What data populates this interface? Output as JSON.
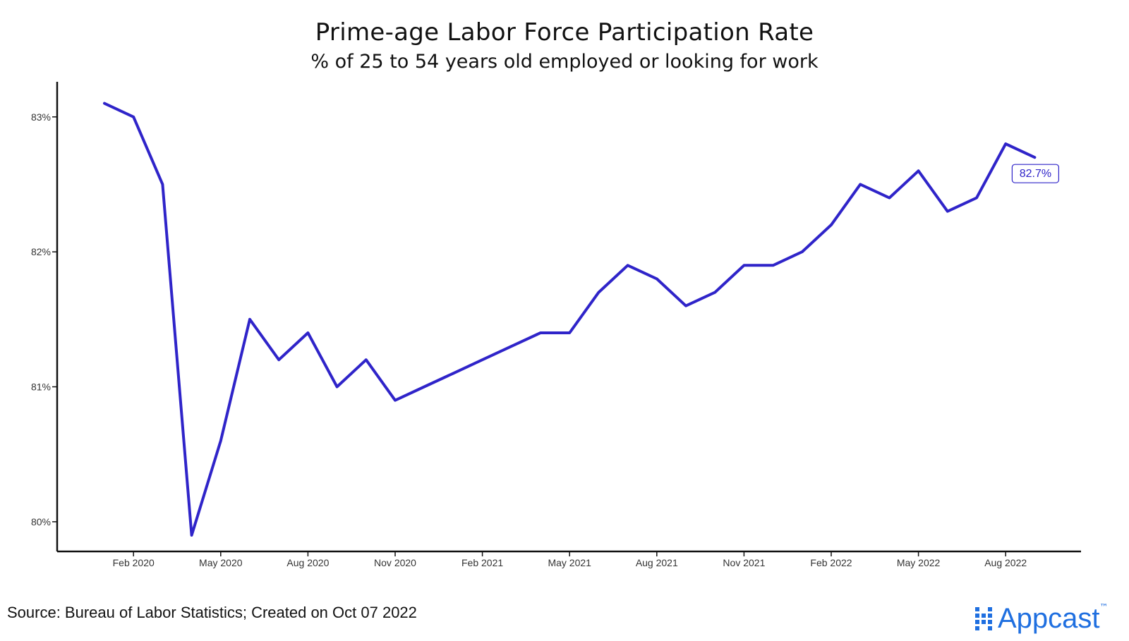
{
  "title": "Prime-age Labor Force Participation Rate",
  "subtitle": "% of 25 to 54 years old employed or looking for work",
  "source": "Source: Bureau of Labor Statistics; Created on Oct 07 2022",
  "brand": {
    "name": "Appcast",
    "trademark": "™",
    "color": "#1f6fe0"
  },
  "colors": {
    "line": "#2f24c9",
    "axis": "#111111",
    "text": "#111111"
  },
  "chart_data": {
    "type": "line",
    "title": "Prime-age Labor Force Participation Rate",
    "subtitle": "% of 25 to 54 years old employed or looking for work",
    "xlabel": "",
    "ylabel": "",
    "x": [
      "2020-01",
      "2020-02",
      "2020-03",
      "2020-04",
      "2020-05",
      "2020-06",
      "2020-07",
      "2020-08",
      "2020-09",
      "2020-10",
      "2020-11",
      "2020-12",
      "2021-01",
      "2021-02",
      "2021-03",
      "2021-04",
      "2021-05",
      "2021-06",
      "2021-07",
      "2021-08",
      "2021-09",
      "2021-10",
      "2021-11",
      "2021-12",
      "2022-01",
      "2022-02",
      "2022-03",
      "2022-04",
      "2022-05",
      "2022-06",
      "2022-07",
      "2022-08",
      "2022-09"
    ],
    "series": [
      {
        "values": [
          83.1,
          83.0,
          82.5,
          79.9,
          80.6,
          81.5,
          81.2,
          81.4,
          81.0,
          81.2,
          80.9,
          81.0,
          81.1,
          81.2,
          81.3,
          81.4,
          81.4,
          81.7,
          81.9,
          81.8,
          81.6,
          81.7,
          81.9,
          81.9,
          82.0,
          82.2,
          82.5,
          82.4,
          82.6,
          82.3,
          82.4,
          82.8,
          82.7
        ]
      }
    ],
    "x_ticks": [
      {
        "at": "2020-02",
        "label": "Feb 2020"
      },
      {
        "at": "2020-05",
        "label": "May 2020"
      },
      {
        "at": "2020-08",
        "label": "Aug 2020"
      },
      {
        "at": "2020-11",
        "label": "Nov 2020"
      },
      {
        "at": "2021-02",
        "label": "Feb 2021"
      },
      {
        "at": "2021-05",
        "label": "May 2021"
      },
      {
        "at": "2021-08",
        "label": "Aug 2021"
      },
      {
        "at": "2021-11",
        "label": "Nov 2021"
      },
      {
        "at": "2022-02",
        "label": "Feb 2022"
      },
      {
        "at": "2022-05",
        "label": "May 2022"
      },
      {
        "at": "2022-08",
        "label": "Aug 2022"
      }
    ],
    "y_ticks": [
      {
        "value": 80,
        "label": "80%"
      },
      {
        "value": 81,
        "label": "81%"
      },
      {
        "value": 82,
        "label": "82%"
      },
      {
        "value": 83,
        "label": "83%"
      }
    ],
    "ylim": [
      79.78,
      83.26
    ],
    "grid": false,
    "annotations": [
      {
        "at": "2022-09",
        "label": "82.7%"
      }
    ]
  }
}
